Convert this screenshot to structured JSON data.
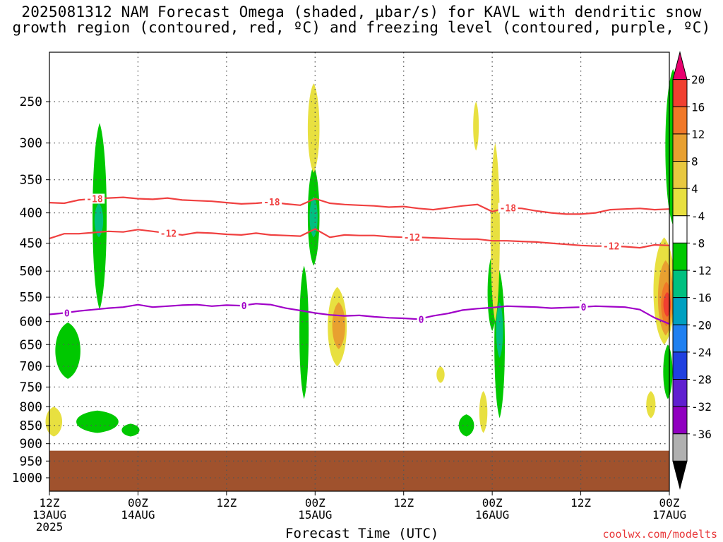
{
  "title": {
    "line1": "2025081312 NAM Forecast Omega (shaded, µbar/s) for KAVL with dendritic snow",
    "line2": "growth region (contoured, red, ºC) and freezing level (contoured, purple, ºC)"
  },
  "credit": "coolwx.com/modelts",
  "chart_data": {
    "type": "heatmap",
    "xlabel": "Forecast Time (UTC)",
    "ylabel": "",
    "y_scale": "pressure (log-like, inverted)",
    "xlim_hours": [
      0,
      84
    ],
    "ylim_hpa": [
      1050,
      200
    ],
    "x_ticks": [
      {
        "hour": 0,
        "l1": "12Z",
        "l2": "13AUG",
        "l3": "2025"
      },
      {
        "hour": 12,
        "l1": "00Z",
        "l2": "14AUG",
        "l3": ""
      },
      {
        "hour": 24,
        "l1": "12Z",
        "l2": "",
        "l3": ""
      },
      {
        "hour": 36,
        "l1": "00Z",
        "l2": "15AUG",
        "l3": ""
      },
      {
        "hour": 48,
        "l1": "12Z",
        "l2": "",
        "l3": ""
      },
      {
        "hour": 60,
        "l1": "00Z",
        "l2": "16AUG",
        "l3": ""
      },
      {
        "hour": 72,
        "l1": "12Z",
        "l2": "",
        "l3": ""
      },
      {
        "hour": 84,
        "l1": "00Z",
        "l2": "17AUG",
        "l3": ""
      }
    ],
    "y_ticks": [
      250,
      300,
      350,
      400,
      450,
      500,
      550,
      600,
      650,
      700,
      750,
      800,
      850,
      900,
      950,
      1000
    ],
    "grid": true,
    "colorbar": {
      "labels": [
        "20",
        "16",
        "12",
        "8",
        "4",
        "-4",
        "-8",
        "-12",
        "-16",
        "-20",
        "-24",
        "-28",
        "-32",
        "-36"
      ],
      "colors": [
        "#e8006e",
        "#f04030",
        "#f07828",
        "#e8a030",
        "#e8c840",
        "#e8e040",
        "#ffffff",
        "#00c800",
        "#00c080",
        "#00a0c0",
        "#2080f0",
        "#2040e0",
        "#6020d0",
        "#9000c0",
        "#b0b0b0",
        "#000000"
      ]
    },
    "ground_color": "#a0522d",
    "ground_hpa": 920,
    "series": [
      {
        "name": "-18",
        "color": "#f04040",
        "hours": [
          0,
          2,
          4,
          6,
          8,
          10,
          12,
          14,
          16,
          18,
          20,
          22,
          24,
          26,
          28,
          30,
          32,
          34,
          36,
          38,
          40,
          42,
          44,
          46,
          48,
          50,
          52,
          54,
          56,
          58,
          60,
          62,
          64,
          66,
          68,
          70,
          72,
          74,
          76,
          78,
          80,
          82,
          84
        ],
        "values": [
          384,
          385,
          380,
          378,
          377,
          376,
          378,
          379,
          377,
          380,
          381,
          382,
          384,
          386,
          385,
          383,
          386,
          388,
          378,
          385,
          387,
          388,
          389,
          391,
          390,
          393,
          395,
          392,
          389,
          387,
          398,
          392,
          393,
          397,
          400,
          402,
          402,
          400,
          395,
          394,
          393,
          395,
          394
        ]
      },
      {
        "name": "-12",
        "color": "#f04040",
        "hours": [
          0,
          2,
          4,
          6,
          8,
          10,
          12,
          14,
          16,
          18,
          20,
          22,
          24,
          26,
          28,
          30,
          32,
          34,
          36,
          38,
          40,
          42,
          44,
          46,
          48,
          50,
          52,
          54,
          56,
          58,
          60,
          62,
          64,
          66,
          68,
          70,
          72,
          74,
          76,
          78,
          80,
          82,
          84
        ],
        "values": [
          442,
          434,
          434,
          432,
          430,
          431,
          427,
          430,
          433,
          436,
          432,
          433,
          435,
          436,
          433,
          436,
          437,
          438,
          426,
          440,
          436,
          437,
          437,
          439,
          440,
          440,
          441,
          442,
          443,
          443,
          446,
          446,
          447,
          448,
          450,
          452,
          454,
          455,
          455,
          456,
          458,
          453,
          454
        ]
      },
      {
        "name": "0",
        "color": "#a000c8",
        "hours": [
          0,
          2,
          4,
          6,
          8,
          10,
          12,
          14,
          16,
          18,
          20,
          22,
          24,
          26,
          28,
          30,
          32,
          34,
          36,
          38,
          40,
          42,
          44,
          46,
          48,
          50,
          52,
          54,
          56,
          58,
          60,
          62,
          64,
          66,
          68,
          70,
          72,
          74,
          76,
          78,
          80,
          82,
          84
        ],
        "values": [
          585,
          582,
          578,
          575,
          572,
          570,
          565,
          570,
          568,
          566,
          565,
          568,
          566,
          567,
          563,
          565,
          572,
          577,
          582,
          586,
          588,
          587,
          590,
          592,
          593,
          595,
          588,
          583,
          576,
          573,
          571,
          568,
          569,
          570,
          572,
          571,
          570,
          568,
          569,
          570,
          575,
          592,
          605
        ]
      }
    ],
    "omega_regions": [
      {
        "level": "-4",
        "hour": 2.5,
        "p_top": 602,
        "p_bot": 730,
        "w": 1.8
      },
      {
        "level": "-4",
        "hour": 6.8,
        "p_top": 275,
        "p_bot": 575,
        "w": 0.9
      },
      {
        "level": "-4",
        "hour": 6.5,
        "p_top": 810,
        "p_bot": 870,
        "w": 3.2
      },
      {
        "level": "-4",
        "hour": 11.0,
        "p_top": 845,
        "p_bot": 880,
        "w": 1.2
      },
      {
        "level": "-4",
        "hour": 34.5,
        "p_top": 490,
        "p_bot": 780,
        "w": 0.5
      },
      {
        "level": "-4",
        "hour": 35.8,
        "p_top": 330,
        "p_bot": 490,
        "w": 0.7
      },
      {
        "level": "-4",
        "hour": 60.0,
        "p_top": 470,
        "p_bot": 620,
        "w": 0.5
      },
      {
        "level": "-4",
        "hour": 61.0,
        "p_top": 500,
        "p_bot": 830,
        "w": 0.6
      },
      {
        "level": "-4",
        "hour": 56.5,
        "p_top": 820,
        "p_bot": 880,
        "w": 1.0
      },
      {
        "level": "-4",
        "hour": 84.5,
        "p_top": 215,
        "p_bot": 420,
        "w": 1.0
      },
      {
        "level": "-4",
        "hour": 83.8,
        "p_top": 650,
        "p_bot": 780,
        "w": 0.5
      },
      {
        "level": "-8",
        "hour": 6.7,
        "p_top": 385,
        "p_bot": 440,
        "w": 0.45
      },
      {
        "level": "-8",
        "hour": 35.8,
        "p_top": 375,
        "p_bot": 440,
        "w": 0.4
      },
      {
        "level": "-8",
        "hour": 61.0,
        "p_top": 560,
        "p_bot": 680,
        "w": 0.3
      },
      {
        "level": "4",
        "hour": 0.6,
        "p_top": 800,
        "p_bot": 880,
        "w": 1.1
      },
      {
        "level": "4",
        "hour": 35.8,
        "p_top": 230,
        "p_bot": 340,
        "w": 0.7
      },
      {
        "level": "4",
        "hour": 39.0,
        "p_top": 530,
        "p_bot": 700,
        "w": 1.3
      },
      {
        "level": "4",
        "hour": 53.0,
        "p_top": 700,
        "p_bot": 740,
        "w": 0.4
      },
      {
        "level": "4",
        "hour": 57.8,
        "p_top": 250,
        "p_bot": 310,
        "w": 0.2
      },
      {
        "level": "4",
        "hour": 60.4,
        "p_top": 300,
        "p_bot": 600,
        "w": 0.5
      },
      {
        "level": "4",
        "hour": 58.8,
        "p_top": 760,
        "p_bot": 870,
        "w": 0.4
      },
      {
        "level": "4",
        "hour": 83.3,
        "p_top": 440,
        "p_bot": 650,
        "w": 1.5
      },
      {
        "level": "4",
        "hour": 81.5,
        "p_top": 760,
        "p_bot": 830,
        "w": 0.5
      },
      {
        "level": "8",
        "hour": 39.2,
        "p_top": 560,
        "p_bot": 660,
        "w": 0.8
      },
      {
        "level": "8",
        "hour": 83.5,
        "p_top": 480,
        "p_bot": 630,
        "w": 1.0
      },
      {
        "level": "12",
        "hour": 83.6,
        "p_top": 520,
        "p_bot": 610,
        "w": 0.6
      },
      {
        "level": "16",
        "hour": 83.7,
        "p_top": 540,
        "p_bot": 590,
        "w": 0.35
      }
    ]
  }
}
